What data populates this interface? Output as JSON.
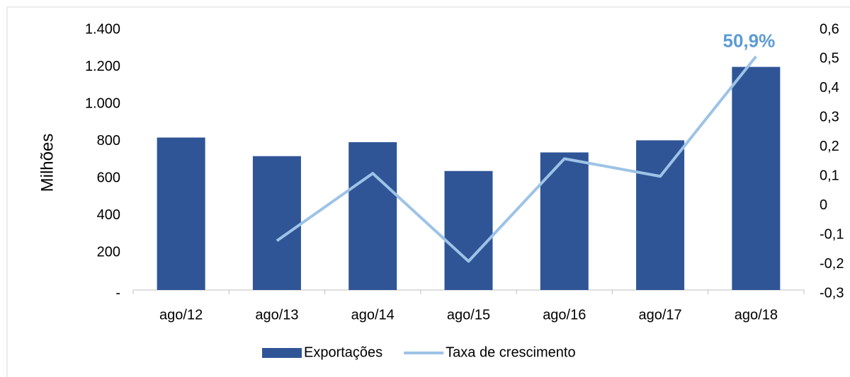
{
  "chart_data": {
    "type": "bar-line",
    "y_label": "Milhões",
    "categories": [
      "ago/12",
      "ago/13",
      "ago/14",
      "ago/15",
      "ago/16",
      "ago/17",
      "ago/18"
    ],
    "series": [
      {
        "name": "Exportações",
        "type": "bar",
        "color": "#2f5597",
        "values": [
          820,
          720,
          795,
          640,
          740,
          805,
          1200
        ]
      },
      {
        "name": "Taxa de crescimento",
        "type": "line",
        "axis": "y2",
        "color": "#9dc3e6",
        "values": [
          null,
          -0.12,
          0.11,
          -0.19,
          0.16,
          0.1,
          0.509
        ],
        "value_labels": [
          null,
          null,
          null,
          null,
          null,
          null,
          "50,9%"
        ]
      }
    ],
    "ylim": [
      0,
      1400
    ],
    "yticks": [
      {
        "value": 0,
        "label": "-"
      },
      200,
      400,
      600,
      800,
      {
        "value": 1000,
        "label": "1.000"
      },
      {
        "value": 1200,
        "label": "1.200"
      },
      {
        "value": 1400,
        "label": "1.400"
      }
    ],
    "y2lim": [
      -0.3,
      0.6
    ],
    "y2ticks": [
      {
        "value": -0.3,
        "label": "-0,3"
      },
      {
        "value": -0.2,
        "label": "-0,2"
      },
      {
        "value": -0.1,
        "label": "-0,1"
      },
      0,
      {
        "value": 0.1,
        "label": "0,1"
      },
      {
        "value": 0.2,
        "label": "0,2"
      },
      {
        "value": 0.3,
        "label": "0,3"
      },
      {
        "value": 0.4,
        "label": "0,4"
      },
      {
        "value": 0.5,
        "label": "0,5"
      },
      {
        "value": 0.6,
        "label": "0,6"
      }
    ],
    "legend": "bottom"
  }
}
